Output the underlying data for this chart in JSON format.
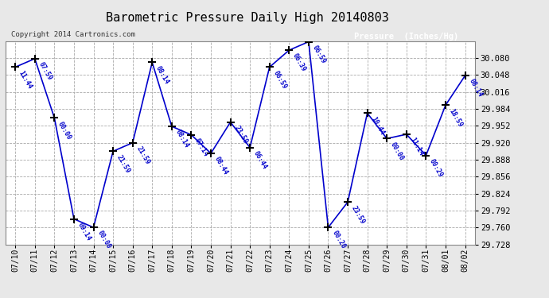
{
  "title": "Barometric Pressure Daily High 20140803",
  "copyright": "Copyright 2014 Cartronics.com",
  "legend_label": "Pressure  (Inches/Hg)",
  "x_labels": [
    "07/10",
    "07/11",
    "07/12",
    "07/13",
    "07/14",
    "07/15",
    "07/16",
    "07/17",
    "07/18",
    "07/19",
    "07/20",
    "07/21",
    "07/22",
    "07/23",
    "07/24",
    "07/25",
    "07/26",
    "07/27",
    "07/28",
    "07/29",
    "07/30",
    "07/31",
    "08/01",
    "08/02"
  ],
  "y_values": [
    30.063,
    30.079,
    29.967,
    29.776,
    29.76,
    29.904,
    29.92,
    30.072,
    29.951,
    29.935,
    29.9,
    29.959,
    29.911,
    30.063,
    30.095,
    30.111,
    29.76,
    29.808,
    29.976,
    29.928,
    29.936,
    29.896,
    29.991,
    30.047
  ],
  "point_labels": [
    "11:44",
    "07:59",
    "00:00",
    "09:14",
    "00:00",
    "21:59",
    "21:59",
    "08:14",
    "08:14",
    "07:14",
    "08:44",
    "23:59",
    "06:44",
    "06:59",
    "06:39",
    "06:59",
    "00:20",
    "23:59",
    "10:44",
    "00:00",
    "11:14",
    "00:29",
    "18:59",
    "08:14"
  ],
  "line_color": "#0000CC",
  "marker_color": "#000000",
  "bg_color": "#e8e8e8",
  "plot_bg_color": "#ffffff",
  "grid_color": "#aaaaaa",
  "title_color": "#000000",
  "legend_bg": "#0000AA",
  "legend_text": "#ffffff",
  "y_min": 29.728,
  "y_max": 30.111,
  "y_tick_interval": 0.032
}
